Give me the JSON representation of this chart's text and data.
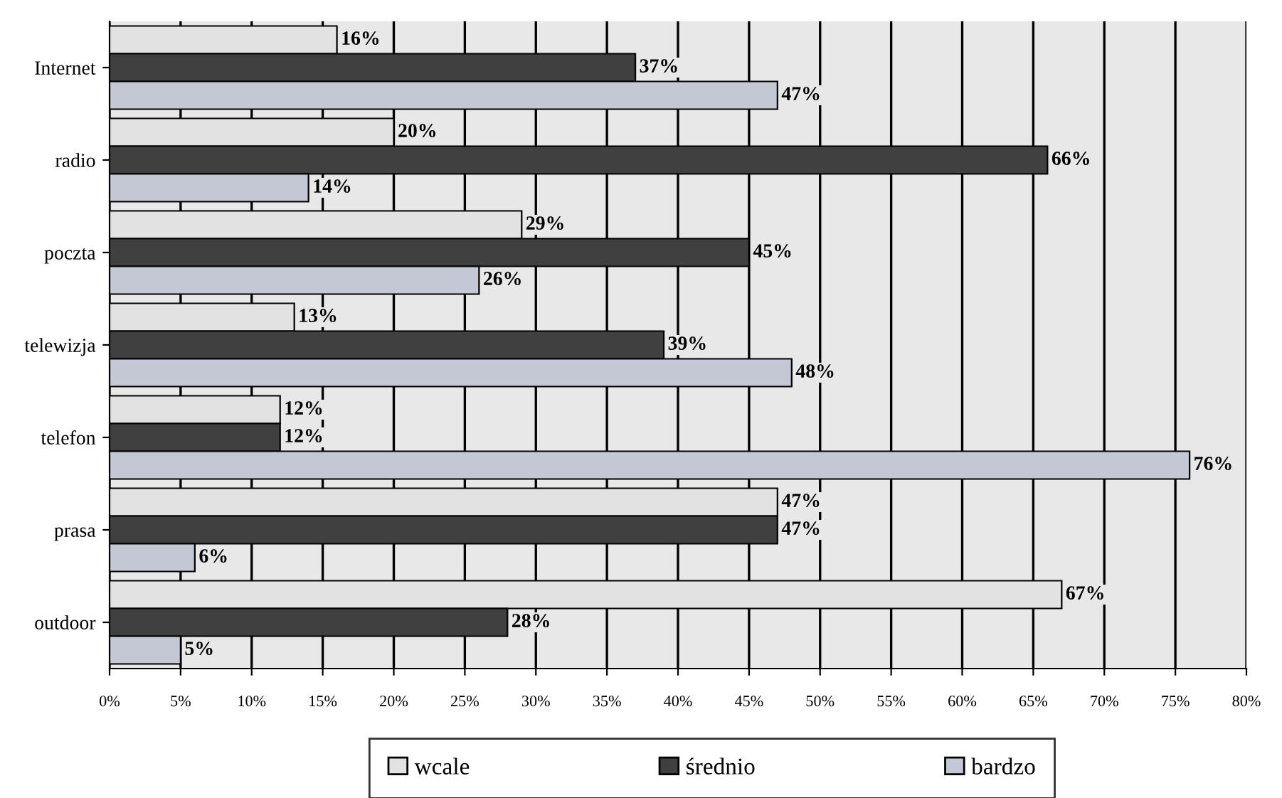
{
  "chart_data": {
    "type": "bar",
    "orientation": "horizontal",
    "categories": [
      "Internet",
      "radio",
      "poczta",
      "telewizja",
      "telefon",
      "prasa",
      "outdoor"
    ],
    "series": [
      {
        "name": "wcale",
        "color": "#e2e2e2",
        "values": [
          16,
          20,
          29,
          13,
          12,
          47,
          67
        ],
        "value_labels": [
          "16%",
          "20%",
          "29%",
          "13%",
          "12%",
          "47%",
          "67%"
        ]
      },
      {
        "name": "średnio",
        "color": "#404040",
        "values": [
          37,
          66,
          45,
          39,
          12,
          47,
          28
        ],
        "value_labels": [
          "37%",
          "66%",
          "45%",
          "39%",
          "12%",
          "47%",
          "28%"
        ]
      },
      {
        "name": "bardzo",
        "color": "#c4c8d4",
        "values": [
          47,
          14,
          26,
          48,
          76,
          6,
          5
        ],
        "value_labels": [
          "47%",
          "14%",
          "26%",
          "48%",
          "76%",
          "6%",
          "5%"
        ]
      }
    ],
    "xlim": [
      0,
      80
    ],
    "xticks": [
      {
        "value": 0,
        "label": "0%"
      },
      {
        "value": 5,
        "label": "5%"
      },
      {
        "value": 10,
        "label": "10%"
      },
      {
        "value": 15,
        "label": "15%"
      },
      {
        "value": 20,
        "label": "20%"
      },
      {
        "value": 25,
        "label": "25%"
      },
      {
        "value": 30,
        "label": "30%"
      },
      {
        "value": 35,
        "label": "35%"
      },
      {
        "value": 40,
        "label": "40%"
      },
      {
        "value": 45,
        "label": "45%"
      },
      {
        "value": 50,
        "label": "50%"
      },
      {
        "value": 55,
        "label": "55%"
      },
      {
        "value": 60,
        "label": "60%"
      },
      {
        "value": 65,
        "label": "65%"
      },
      {
        "value": 70,
        "label": "70%"
      },
      {
        "value": 75,
        "label": "75%"
      },
      {
        "value": 80,
        "label": "80%"
      }
    ],
    "grid": "x",
    "legend": "bottom"
  }
}
